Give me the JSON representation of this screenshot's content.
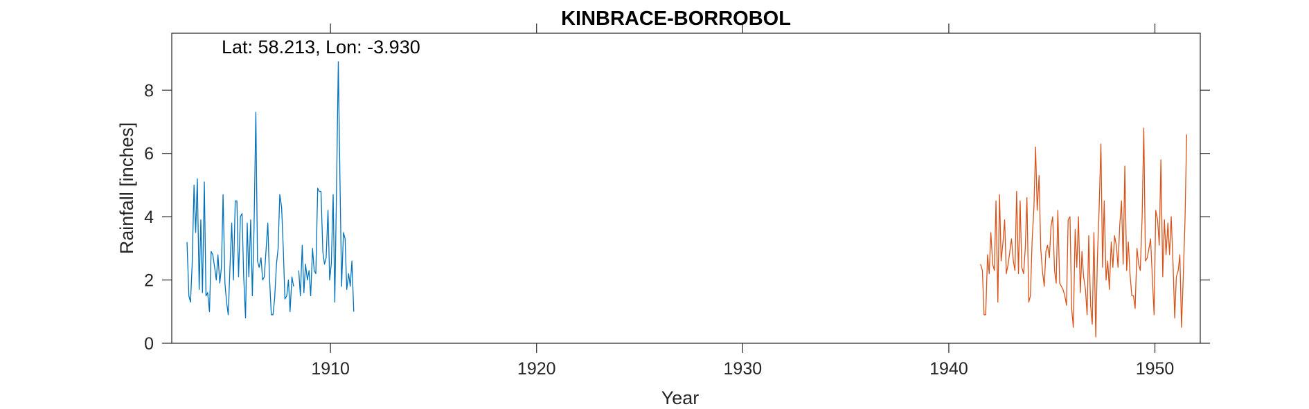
{
  "chart_data": {
    "type": "line",
    "title": "KINBRACE-BORROBOL",
    "xlabel": "Year",
    "ylabel": "Rainfall [inches]",
    "annotation": "Lat: 58.213, Lon: -3.930",
    "xlim": [
      1902.3,
      1952.2
    ],
    "ylim": [
      0,
      9.8
    ],
    "xticks": [
      1910,
      1920,
      1930,
      1940,
      1950
    ],
    "yticks": [
      0,
      2,
      4,
      6,
      8
    ],
    "grid": false,
    "series": [
      {
        "color": "#0072BD",
        "segments": [
          {
            "x": [
              1903.04,
              1903.13,
              1903.21,
              1903.29,
              1903.38,
              1903.46,
              1903.54,
              1903.63,
              1903.71,
              1903.79,
              1903.88,
              1903.96,
              1904.04,
              1904.13,
              1904.21,
              1904.29,
              1904.38,
              1904.46,
              1904.54,
              1904.63,
              1904.71,
              1904.79,
              1904.88,
              1904.96,
              1905.04,
              1905.13,
              1905.21,
              1905.29,
              1905.38,
              1905.46,
              1905.54,
              1905.63,
              1905.71,
              1905.79,
              1905.88,
              1905.96,
              1906.04,
              1906.13,
              1906.21,
              1906.29,
              1906.38,
              1906.46,
              1906.54,
              1906.63,
              1906.71,
              1906.79,
              1906.88,
              1906.96,
              1907.04,
              1907.13,
              1907.21,
              1907.29,
              1907.38,
              1907.46,
              1907.54,
              1907.63,
              1907.71,
              1907.79,
              1907.88,
              1907.96,
              1908.04,
              1908.13,
              1908.21
            ],
            "y": [
              3.2,
              1.5,
              1.3,
              2.5,
              5.0,
              3.5,
              5.2,
              1.7,
              3.9,
              1.6,
              5.1,
              1.5,
              1.6,
              1.0,
              2.9,
              2.8,
              2.4,
              2.0,
              2.8,
              1.9,
              2.4,
              4.7,
              1.9,
              1.3,
              0.9,
              2.5,
              3.8,
              2.0,
              4.5,
              4.5,
              2.1,
              4.0,
              4.1,
              2.1,
              0.8,
              3.8,
              2.1,
              3.9,
              1.5,
              3.6,
              7.3,
              2.6,
              2.4,
              2.7,
              2.0,
              2.1,
              3.0,
              3.8,
              2.1,
              0.9,
              0.9,
              1.4,
              2.5,
              3.0,
              4.7,
              4.3,
              3.0,
              1.4,
              1.5,
              2.0,
              1.0,
              2.1,
              1.8
            ]
          },
          {
            "x": [
              1908.46,
              1908.54,
              1908.63,
              1908.71,
              1908.79,
              1908.88,
              1908.96,
              1909.04,
              1909.13,
              1909.21,
              1909.29,
              1909.38,
              1909.46,
              1909.54,
              1909.63,
              1909.71,
              1909.79,
              1909.88,
              1909.96,
              1910.04,
              1910.13,
              1910.21,
              1910.29,
              1910.38,
              1910.46,
              1910.54,
              1910.63,
              1910.71,
              1910.79,
              1910.88,
              1910.96,
              1911.04,
              1911.13
            ],
            "y": [
              2.3,
              1.5,
              3.1,
              1.6,
              2.5,
              2.0,
              2.3,
              1.5,
              3.0,
              2.3,
              2.2,
              4.9,
              4.8,
              4.8,
              2.9,
              2.5,
              2.7,
              4.2,
              2.0,
              2.5,
              4.7,
              1.3,
              4.7,
              8.9,
              5.2,
              1.8,
              3.5,
              3.3,
              1.7,
              2.2,
              1.8,
              2.6,
              1.0
            ]
          }
        ]
      },
      {
        "color": "#D95319",
        "segments": [
          {
            "x": [
              1941.54,
              1941.63,
              1941.71,
              1941.79,
              1941.88,
              1941.96,
              1942.04,
              1942.13,
              1942.21,
              1942.29,
              1942.38,
              1942.46,
              1942.54,
              1942.63,
              1942.71,
              1942.79,
              1942.88,
              1942.96,
              1943.04,
              1943.13,
              1943.21,
              1943.29,
              1943.38,
              1943.46,
              1943.54,
              1943.63,
              1943.71,
              1943.79,
              1943.88,
              1943.96,
              1944.04,
              1944.13,
              1944.21,
              1944.29,
              1944.38,
              1944.46,
              1944.54,
              1944.63,
              1944.71,
              1944.79,
              1944.88,
              1944.96,
              1945.04,
              1945.13,
              1945.21,
              1945.29,
              1945.38,
              1945.46,
              1945.54,
              1945.63,
              1945.71,
              1945.79,
              1945.88,
              1945.96,
              1946.04,
              1946.13,
              1946.21,
              1946.29,
              1946.38,
              1946.46,
              1946.54,
              1946.63,
              1946.71,
              1946.79,
              1946.88,
              1946.96,
              1947.04,
              1947.13,
              1947.21,
              1947.29,
              1947.38,
              1947.46,
              1947.54,
              1947.63,
              1947.71,
              1947.79,
              1947.88,
              1947.96,
              1948.04,
              1948.13,
              1948.21,
              1948.29,
              1948.38,
              1948.46,
              1948.54,
              1948.63,
              1948.71,
              1948.79,
              1948.88,
              1948.96,
              1949.04,
              1949.13,
              1949.21,
              1949.29,
              1949.38,
              1949.46,
              1949.54,
              1949.63,
              1949.71,
              1949.79,
              1949.88,
              1949.96,
              1950.04,
              1950.13,
              1950.21,
              1950.29,
              1950.38,
              1950.46,
              1950.54,
              1950.63,
              1950.71,
              1950.79,
              1950.88,
              1950.96,
              1951.04,
              1951.13,
              1951.21,
              1951.29,
              1951.38,
              1951.46,
              1951.54
            ],
            "y": [
              2.5,
              2.3,
              0.9,
              0.9,
              2.8,
              2.2,
              3.5,
              2.5,
              2.3,
              4.5,
              1.3,
              4.7,
              2.6,
              3.2,
              3.9,
              2.2,
              2.5,
              2.9,
              3.3,
              2.6,
              2.3,
              4.8,
              2.2,
              4.5,
              2.4,
              2.2,
              3.0,
              4.6,
              1.3,
              1.5,
              3.2,
              4.3,
              6.2,
              4.2,
              5.3,
              3.0,
              2.3,
              1.8,
              2.9,
              3.1,
              2.7,
              3.7,
              4.0,
              2.3,
              1.9,
              4.2,
              1.9,
              1.8,
              1.7,
              1.5,
              1.2,
              3.9,
              4.0,
              1.1,
              0.5,
              3.6,
              2.4,
              4.0,
              1.6,
              2.9,
              2.1,
              1.7,
              0.9,
              3.4,
              1.2,
              0.6,
              3.5,
              0.2,
              2.7,
              4.2,
              6.3,
              2.4,
              4.5,
              2.0,
              2.6,
              1.7,
              3.2,
              2.4,
              3.4,
              3.1,
              2.4,
              3.7,
              4.5,
              2.5,
              5.6,
              2.3,
              3.2,
              2.2,
              1.5,
              1.5,
              1.1,
              3.0,
              2.5,
              2.3,
              4.0,
              6.8,
              2.6,
              2.7,
              3.0,
              3.3,
              2.0,
              0.9,
              4.2,
              3.9,
              3.1,
              5.8,
              2.1,
              3.9,
              2.8,
              3.8,
              2.8,
              4.0,
              2.5,
              0.8,
              2.1,
              2.3,
              2.8,
              0.5,
              2.2,
              3.9,
              6.6
            ]
          }
        ]
      }
    ]
  }
}
